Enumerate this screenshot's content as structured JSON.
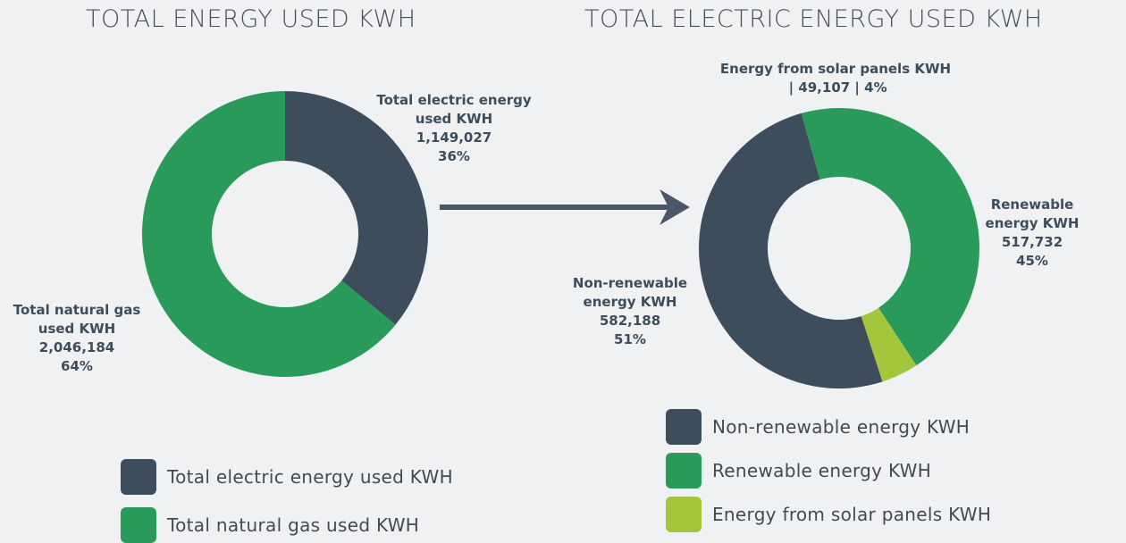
{
  "chart_data": [
    {
      "type": "pie",
      "donut": true,
      "title": "TOTAL ENERGY USED KWH",
      "categories": [
        "Total electric energy used KWH",
        "Total natural gas used KWH"
      ],
      "values": [
        1149027,
        2046184
      ],
      "value_labels": [
        "1,149,027",
        "2,046,184"
      ],
      "percent_labels": [
        "36%",
        "64%"
      ],
      "colors": [
        "#3e4d5b",
        "#2a9a5b"
      ],
      "legend": "bottom"
    },
    {
      "type": "pie",
      "donut": true,
      "title": "TOTAL ELECTRIC ENERGY USED KWH",
      "categories": [
        "Non-renewable energy KWH",
        "Renewable energy KWH",
        "Energy from solar panels KWH"
      ],
      "values": [
        582188,
        517732,
        49107
      ],
      "value_labels": [
        "582,188",
        "517,732",
        "49,107"
      ],
      "percent_labels": [
        "51%",
        "45%",
        "4%"
      ],
      "label_separator": " | ",
      "colors": [
        "#3e4d5b",
        "#2a9a5b",
        "#a3c63d"
      ],
      "legend": "bottom"
    }
  ]
}
